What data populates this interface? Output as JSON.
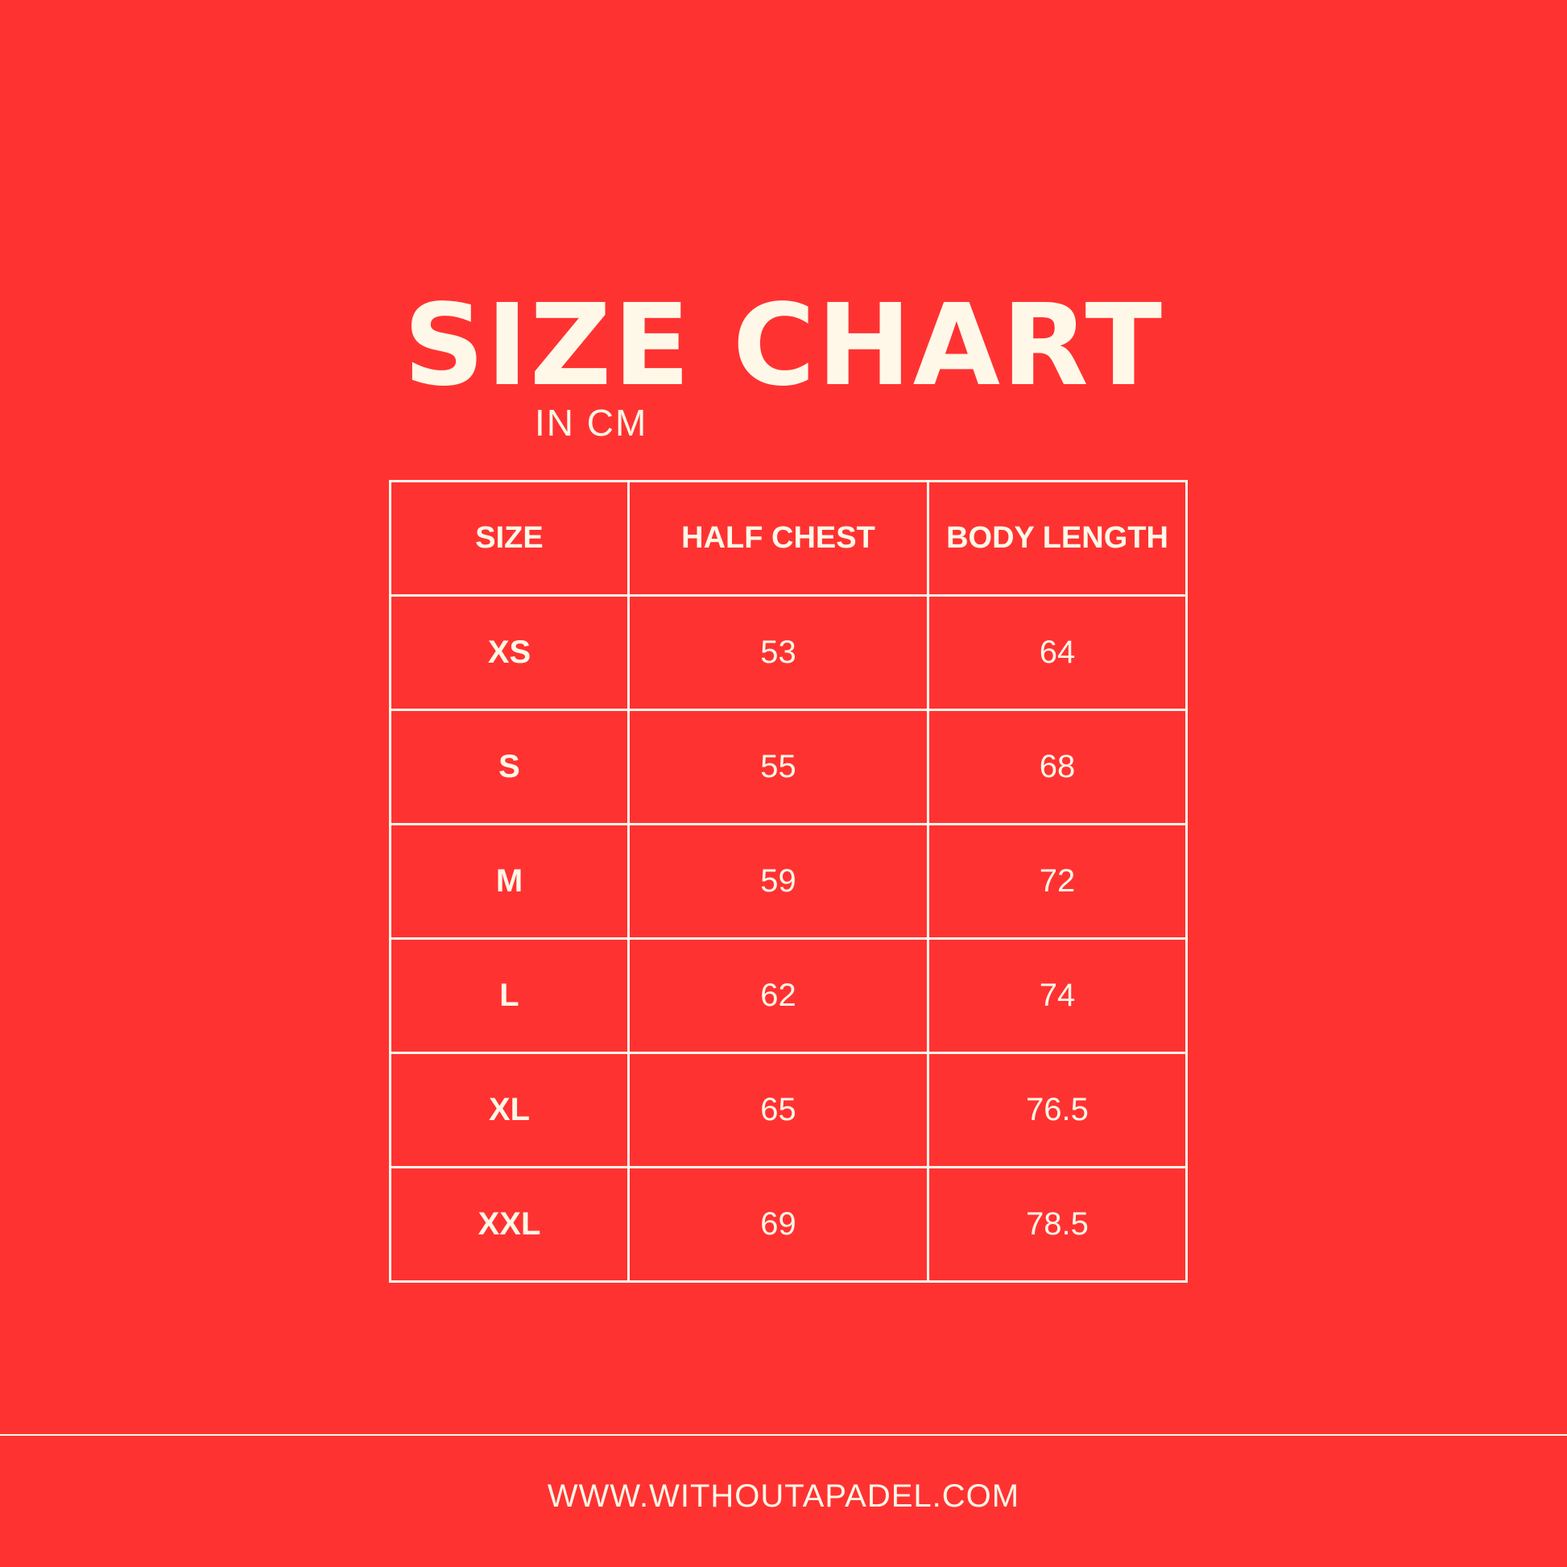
{
  "title": "SIZE CHART",
  "subtitle": "IN CM",
  "table": {
    "headers": [
      "SIZE",
      "HALF CHEST",
      "BODY LENGTH"
    ],
    "rows": [
      [
        "XS",
        "53",
        "64"
      ],
      [
        "S",
        "55",
        "68"
      ],
      [
        "M",
        "59",
        "72"
      ],
      [
        "L",
        "62",
        "74"
      ],
      [
        "XL",
        "65",
        "76.5"
      ],
      [
        "XXL",
        "69",
        "78.5"
      ]
    ]
  },
  "footer": "WWW.WITHOUTAPADEL.COM",
  "colors": {
    "background": "#ff3232",
    "text": "#fff8e8"
  }
}
